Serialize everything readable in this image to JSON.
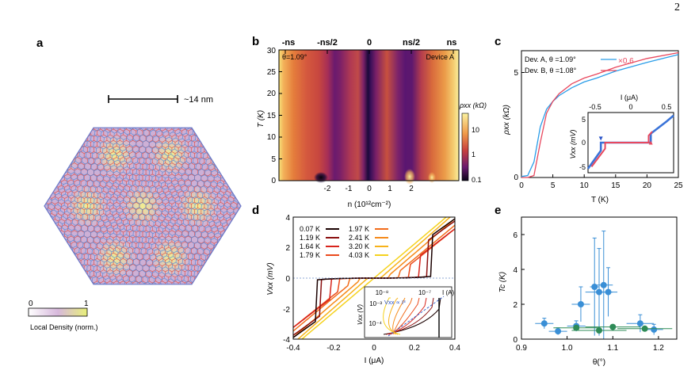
{
  "page": {
    "page_number": "2"
  },
  "panel_a": {
    "letter": "a",
    "scale_label": "~14 nm",
    "colorbar_min": "0",
    "colorbar_max": "1",
    "colorbar_label": "Local Density (norm.)",
    "colors": {
      "lattice_red": "#e0463c",
      "lattice_blue": "#4a86d8",
      "bright_spot": "#f2f27a",
      "purple_mid": "#c9a6d6"
    }
  },
  "panel_b": {
    "letter": "b",
    "top_labels": [
      "-ns",
      "-ns/2",
      "0",
      "ns/2",
      "ns"
    ],
    "angle_label": "θ=1.09°",
    "device_label": "Device A",
    "xlabel": "n (10¹²cm⁻²)",
    "ylabel": "T (K)",
    "xticks": [
      "-2",
      "-1",
      "0",
      "1",
      "2"
    ],
    "yticks": [
      "0",
      "5",
      "10",
      "15",
      "20",
      "25",
      "30"
    ],
    "colorbar_title": "ρxx (kΩ)",
    "colorbar_ticks": [
      "10",
      "1",
      "0.1"
    ]
  },
  "panel_c": {
    "letter": "c",
    "legend": [
      {
        "text": "Dev. A, θ =1.09°",
        "color": "#2a9de8"
      },
      {
        "text": "Dev. B, θ =1.08°",
        "color": "#e8485e"
      }
    ],
    "scale_note": "×0.6",
    "ylabel": "ρxx (kΩ)",
    "xlabel": "T (K)",
    "xticks": [
      "0",
      "5",
      "10",
      "15",
      "20",
      "25"
    ],
    "yticks": [
      "0",
      "5"
    ],
    "inset": {
      "top_label": "I (μA)",
      "top_ticks": [
        "-0.5",
        "0",
        "0.5"
      ],
      "ylabel": "Vxx (mV)",
      "yticks": [
        "5",
        "0",
        "-5"
      ]
    }
  },
  "panel_d": {
    "letter": "d",
    "ylabel": "Vxx (mV)",
    "xlabel": "I (μA)",
    "xticks": [
      "-0.4",
      "-0.2",
      "0",
      "0.2",
      "0.4"
    ],
    "yticks": [
      "4",
      "2",
      "0",
      "-2",
      "-4"
    ],
    "legend": [
      {
        "text": "0.07 K",
        "color": "#1a0000"
      },
      {
        "text": "1.19 K",
        "color": "#8a0e0e"
      },
      {
        "text": "1.64 K",
        "color": "#d8241c"
      },
      {
        "text": "1.79 K",
        "color": "#ea4a1c"
      },
      {
        "text": "1.97 K",
        "color": "#f26b1a"
      },
      {
        "text": "2.41 K",
        "color": "#f58a1a"
      },
      {
        "text": "3.20 K",
        "color": "#f7b21a"
      },
      {
        "text": "4.03 K",
        "color": "#f5d21e"
      }
    ],
    "inset": {
      "top_ticks": [
        "10⁻⁸",
        "10⁻⁷"
      ],
      "top_unit": "I (A)",
      "ylabel": "Vxx (V)",
      "yticks": [
        "10⁻³",
        "10⁻⁴"
      ],
      "annotation": "Vxx ∝ I³"
    }
  },
  "panel_e": {
    "letter": "e",
    "ylabel": "Tc (K)",
    "xlabel": "θ(°)",
    "xticks": [
      "0.9",
      "1.0",
      "1.1",
      "1.2"
    ],
    "yticks": [
      "0",
      "2",
      "4",
      "6"
    ],
    "colors": {
      "blue": "#3a8fd6",
      "green": "#2e8b57"
    }
  },
  "chart_data": [
    {
      "panel": "c",
      "type": "line",
      "title": "",
      "xlabel": "T (K)",
      "ylabel": "ρxx (kΩ)",
      "xlim": [
        0,
        25
      ],
      "ylim": [
        0,
        6.5
      ],
      "series": [
        {
          "name": "Dev. A, θ =1.09°",
          "x": [
            0,
            1,
            2,
            3,
            4,
            5,
            6,
            8,
            10,
            12,
            15,
            20,
            25
          ],
          "y": [
            0.05,
            0.1,
            0.8,
            2.6,
            3.5,
            3.9,
            4.2,
            4.6,
            4.9,
            5.1,
            5.45,
            5.9,
            6.3
          ]
        },
        {
          "name": "Dev. B, θ =1.08° (×0.6)",
          "x": [
            0,
            1,
            2,
            3,
            4,
            5,
            6,
            8,
            10,
            12,
            15,
            20,
            25
          ],
          "y": [
            0.0,
            0.0,
            0.1,
            1.8,
            3.3,
            3.9,
            4.3,
            4.8,
            5.1,
            5.3,
            5.65,
            6.1,
            6.4
          ]
        }
      ]
    },
    {
      "panel": "c-inset",
      "type": "line",
      "xlabel": "I (μA)",
      "ylabel": "Vxx (mV)",
      "xlim": [
        -0.6,
        0.6
      ],
      "ylim": [
        -6,
        6
      ],
      "series": [
        {
          "name": "Dev. A",
          "x": [
            -0.6,
            -0.42,
            -0.42,
            0.28,
            0.28,
            0.5,
            0.6
          ],
          "y": [
            -5.2,
            -1.6,
            0,
            0,
            1.8,
            4.2,
            5.4
          ]
        },
        {
          "name": "Dev. B",
          "x": [
            -0.55,
            -0.36,
            -0.36,
            0.25,
            0.25,
            0.3
          ],
          "y": [
            -4.8,
            -1.2,
            0,
            0,
            1.4,
            2.2
          ]
        }
      ]
    },
    {
      "panel": "d",
      "type": "line",
      "xlabel": "I (μA)",
      "ylabel": "Vxx (mV)",
      "xlim": [
        -0.4,
        0.4
      ],
      "ylim": [
        -4,
        4
      ],
      "series": [
        {
          "name": "0.07 K",
          "ic": 0.285,
          "vjump": 2.8,
          "slope": 9.5
        },
        {
          "name": "1.19 K",
          "ic": 0.27,
          "vjump": 2.5,
          "slope": 9.6
        },
        {
          "name": "1.64 K",
          "ic": 0.22,
          "vjump": 1.4,
          "slope": 10.2
        },
        {
          "name": "1.79 K",
          "ic": 0.18,
          "vjump": 0.9,
          "slope": 10.6
        },
        {
          "name": "1.97 K",
          "ic": 0.13,
          "vjump": 0.5,
          "slope": 11.0
        },
        {
          "name": "2.41 K",
          "ic": 0.08,
          "vjump": 0.25,
          "slope": 11.4
        },
        {
          "name": "3.20 K",
          "ic": 0.04,
          "vjump": 0.1,
          "slope": 11.6
        },
        {
          "name": "4.03 K",
          "ic": 0.0,
          "vjump": 0.0,
          "slope": 11.2
        }
      ]
    },
    {
      "panel": "e",
      "type": "scatter",
      "xlabel": "θ(°)",
      "ylabel": "Tc (K)",
      "xlim": [
        0.9,
        1.24
      ],
      "ylim": [
        0,
        7
      ],
      "series": [
        {
          "name": "blue",
          "color": "#3a8fd6",
          "points": [
            {
              "x": 0.95,
              "y": 0.9,
              "xerr": 0.02,
              "yerr": 0.3
            },
            {
              "x": 0.98,
              "y": 0.45,
              "xerr": 0.02,
              "yerr": 0.2
            },
            {
              "x": 1.02,
              "y": 0.75,
              "xerr": 0.02,
              "yerr": 0.3
            },
            {
              "x": 1.03,
              "y": 2.0,
              "xerr": 0.02,
              "yerr": 1.0
            },
            {
              "x": 1.06,
              "y": 3.0,
              "xerr": 0.01,
              "yerr": 2.8
            },
            {
              "x": 1.07,
              "y": 2.7,
              "xerr": 0.03,
              "yerr": 2.5
            },
            {
              "x": 1.08,
              "y": 3.1,
              "xerr": 0.02,
              "yerr": 3.1
            },
            {
              "x": 1.09,
              "y": 2.7,
              "xerr": 0.02,
              "yerr": 1.4
            },
            {
              "x": 1.16,
              "y": 0.9,
              "xerr": 0.03,
              "yerr": 0.5
            },
            {
              "x": 1.19,
              "y": 0.55,
              "xerr": 0.02,
              "yerr": 0.3
            }
          ]
        },
        {
          "name": "green",
          "color": "#2e8b57",
          "points": [
            {
              "x": 1.02,
              "y": 0.65,
              "xerr": 0.05,
              "yerr": 0.1
            },
            {
              "x": 1.07,
              "y": 0.5,
              "xerr": 0.06,
              "yerr": 0.1
            },
            {
              "x": 1.1,
              "y": 0.7,
              "xerr": 0.06,
              "yerr": 0.1
            },
            {
              "x": 1.17,
              "y": 0.6,
              "xerr": 0.06,
              "yerr": 0.1
            }
          ]
        }
      ]
    }
  ]
}
